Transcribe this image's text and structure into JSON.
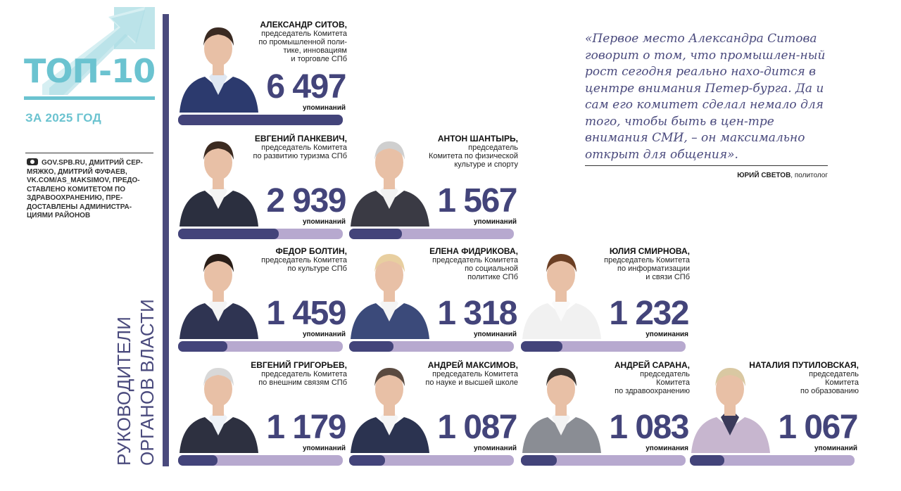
{
  "header": {
    "title": "ТОП-10",
    "year": "ЗА 2025 ГОД",
    "credits": "GOV.SPB.RU, ДМИТРИЙ СЕР-МЯЖКО, ДМИТРИЙ ФУФАЕВ, VK.COM/AS_MAKSIMOV, ПРЕДО-СТАВЛЕНО КОМИТЕТОМ ПО ЗДРАВООХРАНЕНИЮ, ПРЕ-ДОСТАВЛЕНЫ АДМИНИСТРА-ЦИЯМИ РАЙОНОВ",
    "vertical_line1": "РУКОВОДИТЕЛИ",
    "vertical_line2": "ОРГАНОВ ВЛАСТИ"
  },
  "quote": {
    "text": "«Первое место Александра Ситова говорит о том, что промышлен-ный рост сегодня реально нахо-дится в центре внимания Петер-бурга. Да и сам его комитет сделал немало для того, чтобы быть в цен-тре внимания СМИ, – он максимально открыт для общения».",
    "author_name": "ЮРИЙ СВЕТОВ",
    "author_role": ", политолог"
  },
  "colors": {
    "accent_teal": "#6bc3d0",
    "bar_dark": "#43447a",
    "bar_light": "#b7a9cf"
  },
  "people": [
    {
      "name": "АЛЕКСАНДР СИТОВ,",
      "role": "председатель Комитета\nпо промышленной поли-\nтике, инновациям\nи торговле СПб",
      "count": "6 497",
      "mentions": "упоминаний",
      "value": 6497,
      "fill": 1.0
    },
    {
      "name": "ЕВГЕНИЙ ПАНКЕВИЧ,",
      "role": "председатель Комитета\nпо развитию туризма СПб",
      "count": "2 939",
      "mentions": "упоминаний",
      "value": 2939,
      "fill": 0.61
    },
    {
      "name": "АНТОН ШАНТЫРЬ,",
      "role": "председатель\nКомитета по физической\nкультуре и спорту",
      "count": "1 567",
      "mentions": "упоминаний",
      "value": 1567,
      "fill": 0.32
    },
    {
      "name": "ФЕДОР БОЛТИН,",
      "role": "председатель Комитета\nпо культуре СПб",
      "count": "1 459",
      "mentions": "упоминаний",
      "value": 1459,
      "fill": 0.3
    },
    {
      "name": "ЕЛЕНА ФИДРИКОВА,",
      "role": "председатель Комитета\nпо социальной\nполитике СПб",
      "count": "1 318",
      "mentions": "упоминаний",
      "value": 1318,
      "fill": 0.27
    },
    {
      "name": "ЮЛИЯ СМИРНОВА,",
      "role": "председатель Комитета\nпо информатизации\nи связи СПб",
      "count": "1 232",
      "mentions": "упоминания",
      "value": 1232,
      "fill": 0.25
    },
    {
      "name": "ЕВГЕНИЙ ГРИГОРЬЕВ,",
      "role": "председатель Комитета\nпо внешним связям СПб",
      "count": "1 179",
      "mentions": "упоминаний",
      "value": 1179,
      "fill": 0.24
    },
    {
      "name": "АНДРЕЙ МАКСИМОВ,",
      "role": "председатель Комитета\nпо науке и высшей школе",
      "count": "1 087",
      "mentions": "упоминаний",
      "value": 1087,
      "fill": 0.22
    },
    {
      "name": "АНДРЕЙ САРАНА,",
      "role": "председатель\nКомитета\nпо здравоохранению",
      "count": "1 083",
      "mentions": "упоминания",
      "value": 1083,
      "fill": 0.22
    },
    {
      "name": "НАТАЛИЯ ПУТИЛОВСКАЯ,",
      "role": "председатель\nКомитета\nпо образованию",
      "count": "1 067",
      "mentions": "упоминаний",
      "value": 1067,
      "fill": 0.21
    }
  ]
}
